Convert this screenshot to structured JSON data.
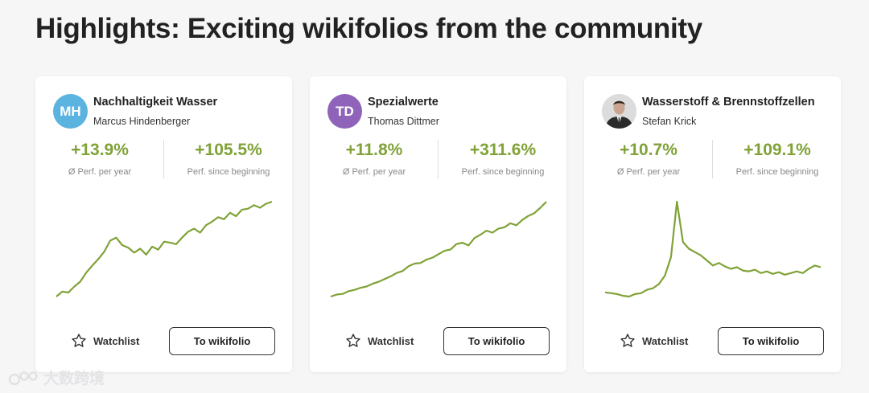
{
  "page": {
    "title": "Highlights: Exciting wikifolios from the community"
  },
  "accent_color": "#80a237",
  "cards": [
    {
      "avatar_text": "MH",
      "avatar_color": "#5bb3df",
      "name": "Nachhaltigkeit Wasser",
      "author": "Marcus Hindenberger",
      "perf_year": "+13.9%",
      "perf_year_label": "Ø Perf. per year",
      "perf_total": "+105.5%",
      "perf_total_label": "Perf. since beginning",
      "chart": [
        0,
        10,
        8,
        20,
        30,
        48,
        62,
        75,
        90,
        112,
        118,
        103,
        98,
        88,
        96,
        84,
        100,
        94,
        110,
        108,
        105,
        118,
        130,
        136,
        128,
        143,
        150,
        159,
        155,
        168,
        161,
        174,
        176,
        183,
        178,
        186,
        190
      ],
      "watchlist_label": "Watchlist",
      "button_label": "To wikifolio"
    },
    {
      "avatar_text": "TD",
      "avatar_color": "#8e63b9",
      "name": "Spezialwerte",
      "author": "Thomas Dittmer",
      "perf_year": "+11.8%",
      "perf_year_label": "Ø Perf. per year",
      "perf_total": "+311.6%",
      "perf_total_label": "Perf. since beginning",
      "chart": [
        0,
        3,
        4,
        8,
        10,
        13,
        15,
        19,
        22,
        26,
        30,
        35,
        38,
        45,
        49,
        50,
        55,
        58,
        63,
        68,
        70,
        78,
        80,
        76,
        87,
        92,
        98,
        95,
        101,
        103,
        109,
        106,
        114,
        120,
        124,
        132,
        141
      ],
      "watchlist_label": "Watchlist",
      "button_label": "To wikifolio"
    },
    {
      "avatar_text": "",
      "avatar_color": "#dcdcdc",
      "name": "Wasserstoff & Brennstoffzellen",
      "author": "Stefan Krick",
      "perf_year": "+10.7%",
      "perf_year_label": "Ø Perf. per year",
      "perf_total": "+109.1%",
      "perf_total_label": "Perf. since beginning",
      "chart": [
        10,
        9,
        8,
        6,
        5,
        8,
        9,
        13,
        15,
        20,
        30,
        52,
        118,
        70,
        62,
        58,
        54,
        48,
        42,
        45,
        41,
        38,
        40,
        36,
        35,
        37,
        33,
        35,
        32,
        34,
        31,
        33,
        35,
        33,
        38,
        42,
        40
      ],
      "watchlist_label": "Watchlist",
      "button_label": "To wikifolio"
    }
  ],
  "watermark": "大数跨境"
}
